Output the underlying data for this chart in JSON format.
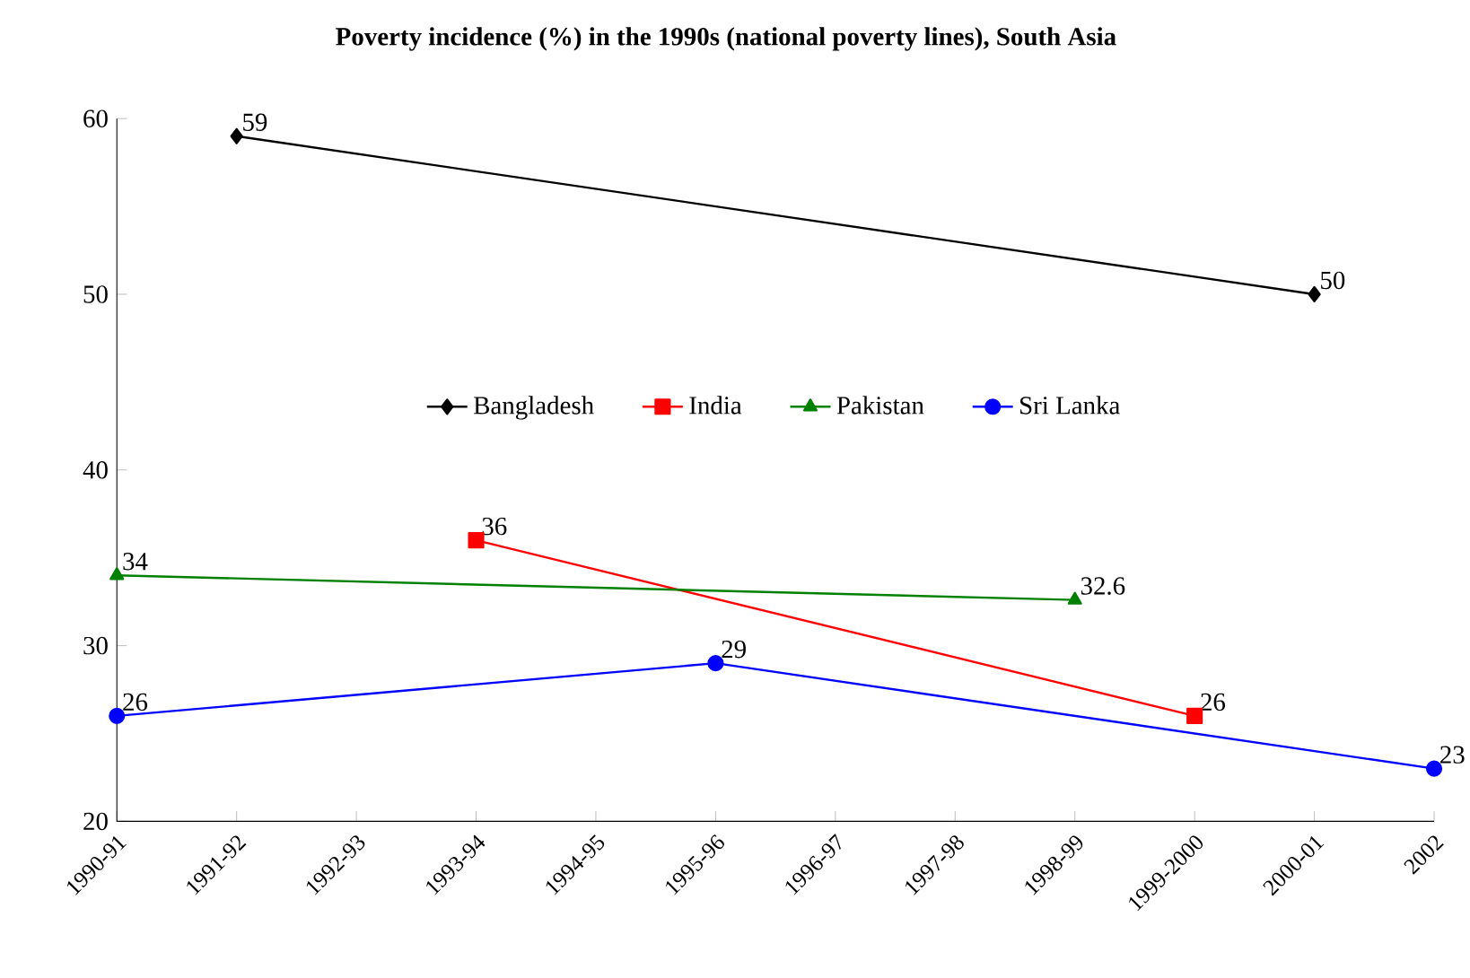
{
  "chart_data": {
    "type": "line",
    "title": "Poverty incidence (%) in the 1990s (national poverty lines), South Asia",
    "categories": [
      "1990-91",
      "1991-92",
      "1992-93",
      "1993-94",
      "1994-95",
      "1995-96",
      "1996-97",
      "1997-98",
      "1998-99",
      "1999-2000",
      "2000-01",
      "2002"
    ],
    "series": [
      {
        "name": "Bangladesh",
        "color": "#000000",
        "marker": "diamond",
        "values": [
          null,
          59,
          null,
          null,
          null,
          null,
          null,
          null,
          null,
          null,
          50,
          null
        ]
      },
      {
        "name": "India",
        "color": "#ff0000",
        "marker": "square",
        "values": [
          null,
          null,
          null,
          36,
          null,
          null,
          null,
          null,
          null,
          26,
          null,
          null
        ]
      },
      {
        "name": "Pakistan",
        "color": "#008000",
        "marker": "triangle",
        "values": [
          34,
          null,
          null,
          null,
          null,
          null,
          null,
          null,
          32.6,
          null,
          null,
          null
        ]
      },
      {
        "name": "Sri Lanka",
        "color": "#0000ff",
        "marker": "circle",
        "values": [
          26,
          null,
          null,
          null,
          null,
          29,
          null,
          null,
          null,
          null,
          null,
          23
        ]
      }
    ],
    "ylim": [
      20,
      60
    ],
    "yticks": [
      20,
      30,
      40,
      50,
      60
    ],
    "grid": false,
    "legend": "center",
    "data_labels": true
  }
}
